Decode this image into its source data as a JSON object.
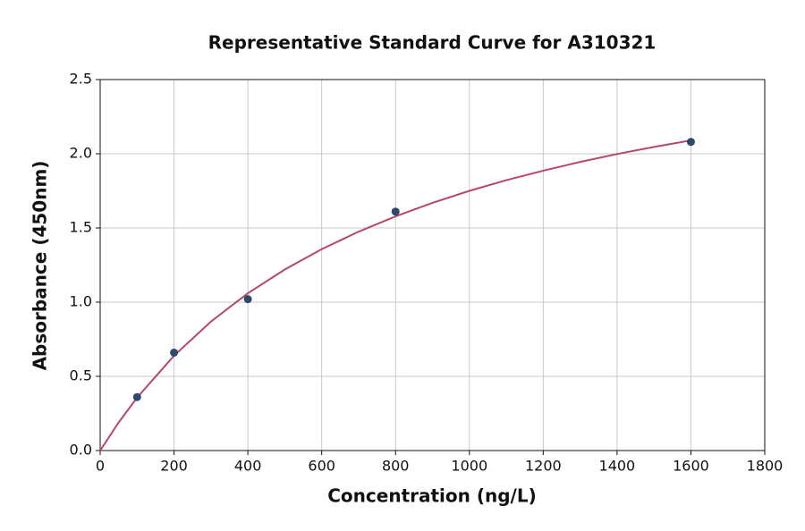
{
  "chart_data": {
    "type": "scatter",
    "title": "Representative Standard Curve for A310321",
    "x_label": "Concentration (ng/L)",
    "y_label": "Absorbance (450nm)",
    "xlim": [
      0,
      1800
    ],
    "ylim": [
      0,
      2.5
    ],
    "xticks": [
      0,
      200,
      400,
      600,
      800,
      1000,
      1200,
      1400,
      1600,
      1800
    ],
    "yticks": [
      {
        "value": 0,
        "label": "0.0"
      },
      0.5,
      {
        "value": 1,
        "label": "1.0"
      },
      1.5,
      {
        "value": 2,
        "label": "2.0"
      },
      2.5
    ],
    "grid": true,
    "series": [
      {
        "style": "markers",
        "color": "#2e4a6b",
        "x": [
          100,
          200,
          400,
          800,
          1600
        ],
        "values": [
          0.36,
          0.66,
          1.02,
          1.61,
          2.08
        ]
      },
      {
        "style": "line",
        "color": "#b5476b",
        "x": [
          0,
          50,
          100,
          200,
          300,
          400,
          500,
          600,
          700,
          800,
          900,
          1000,
          1100,
          1200,
          1300,
          1400,
          1500,
          1600
        ],
        "values": [
          0,
          0.189,
          0.357,
          0.639,
          0.869,
          1.06,
          1.22,
          1.357,
          1.475,
          1.578,
          1.669,
          1.75,
          1.822,
          1.886,
          1.945,
          1.998,
          2.046,
          2.09
        ]
      }
    ]
  }
}
